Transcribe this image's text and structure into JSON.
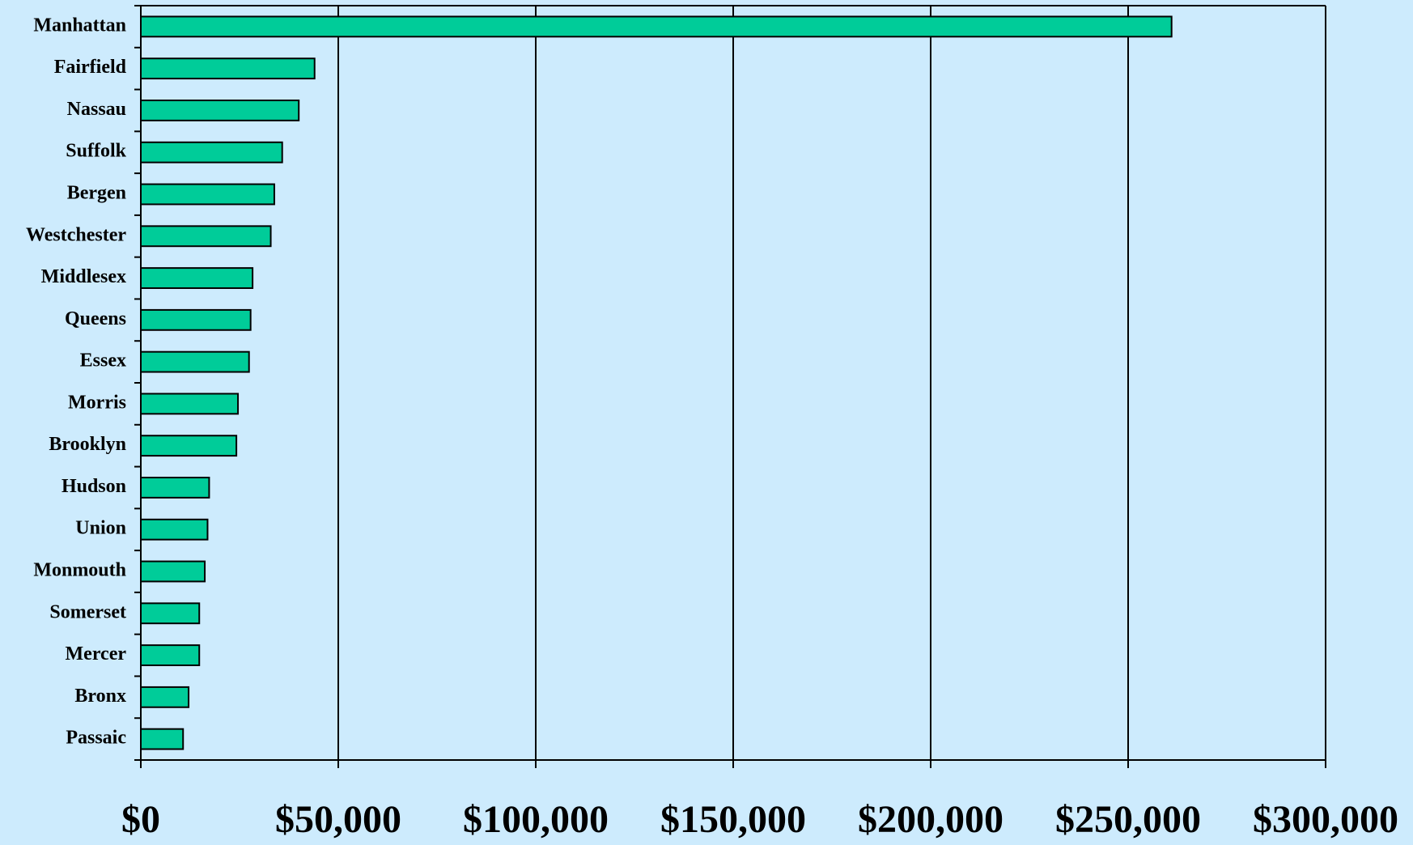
{
  "chart_data": {
    "type": "bar",
    "orientation": "horizontal",
    "categories": [
      "Manhattan",
      "Fairfield",
      "Nassau",
      "Suffolk",
      "Bergen",
      "Westchester",
      "Middlesex",
      "Queens",
      "Essex",
      "Morris",
      "Brooklyn",
      "Hudson",
      "Union",
      "Monmouth",
      "Somerset",
      "Mercer",
      "Bronx",
      "Passaic"
    ],
    "values": [
      261000,
      44000,
      40000,
      35800,
      33800,
      32900,
      28300,
      27800,
      27400,
      24600,
      24200,
      17300,
      16900,
      16200,
      14800,
      14800,
      12100,
      10700
    ],
    "color": "#00cc99",
    "xlim": [
      0,
      300000
    ],
    "xticks": [
      {
        "value": 0,
        "label": "$0"
      },
      {
        "value": 50000,
        "label": "$50,000"
      },
      {
        "value": 100000,
        "label": "$100,000"
      },
      {
        "value": 150000,
        "label": "$150,000"
      },
      {
        "value": 200000,
        "label": "$200,000"
      },
      {
        "value": 250000,
        "label": "$250,000"
      },
      {
        "value": 300000,
        "label": "$300,000"
      }
    ],
    "grid": true
  }
}
